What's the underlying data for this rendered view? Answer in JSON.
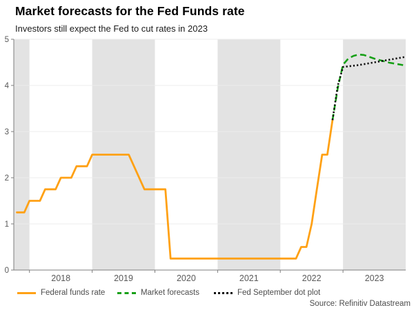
{
  "header": {
    "title": "Market forecasts for the Fed Funds rate",
    "subtitle": "Investors still expect the Fed to cut rates in 2023"
  },
  "source": "Source: Refinitiv Datastream",
  "colors": {
    "federal_funds_rate": "#FFA115",
    "market_forecasts": "#17A017",
    "dot_plot": "#0d0d0d",
    "year_band": "#e3e3e3",
    "gridline": "#ededed",
    "axis": "#7d7d7d",
    "tick_label": "#595959"
  },
  "legend": [
    {
      "label": "Federal funds rate",
      "style": "solid",
      "color": "#FFA115"
    },
    {
      "label": "Market forecasts",
      "style": "dashed",
      "color": "#17A017"
    },
    {
      "label": "Fed September dot plot",
      "style": "dotted",
      "color": "#0d0d0d"
    }
  ],
  "chart_data": {
    "type": "line",
    "title": "Market forecasts for the Fed Funds rate",
    "subtitle": "Investors still expect the Fed to cut rates in 2023",
    "x_unit": "decimal_year",
    "x_range": [
      2017.75,
      2024.0
    ],
    "ylim": [
      0,
      5
    ],
    "y_ticks": [
      0,
      1,
      2,
      3,
      4,
      5
    ],
    "x_tick_years": [
      2018,
      2019,
      2020,
      2021,
      2022,
      2023
    ],
    "grid": true,
    "legend_position": "bottom",
    "shaded_year_bands": [
      [
        2017.75,
        2018
      ],
      [
        2019,
        2020
      ],
      [
        2021,
        2022
      ],
      [
        2023,
        2024
      ]
    ],
    "series": [
      {
        "name": "Federal funds rate",
        "color": "#FFA115",
        "style": "solid",
        "points": [
          [
            2017.8,
            1.25
          ],
          [
            2017.917,
            1.25
          ],
          [
            2018.0,
            1.5
          ],
          [
            2018.167,
            1.5
          ],
          [
            2018.25,
            1.75
          ],
          [
            2018.417,
            1.75
          ],
          [
            2018.5,
            2.0
          ],
          [
            2018.667,
            2.0
          ],
          [
            2018.75,
            2.25
          ],
          [
            2018.917,
            2.25
          ],
          [
            2019.0,
            2.5
          ],
          [
            2019.583,
            2.5
          ],
          [
            2019.833,
            1.75
          ],
          [
            2020.167,
            1.75
          ],
          [
            2020.25,
            0.25
          ],
          [
            2022.25,
            0.25
          ],
          [
            2022.333,
            0.5
          ],
          [
            2022.417,
            0.5
          ],
          [
            2022.5,
            1.0
          ],
          [
            2022.583,
            1.75
          ],
          [
            2022.667,
            2.5
          ],
          [
            2022.75,
            2.5
          ],
          [
            2022.833,
            3.25
          ]
        ]
      },
      {
        "name": "Market forecasts",
        "color": "#17A017",
        "style": "dashed",
        "points": [
          [
            2022.833,
            3.25
          ],
          [
            2022.917,
            3.95
          ],
          [
            2023.0,
            4.45
          ],
          [
            2023.083,
            4.58
          ],
          [
            2023.167,
            4.64
          ],
          [
            2023.25,
            4.67
          ],
          [
            2023.333,
            4.66
          ],
          [
            2023.417,
            4.62
          ],
          [
            2023.5,
            4.58
          ],
          [
            2023.583,
            4.55
          ],
          [
            2023.667,
            4.52
          ],
          [
            2023.75,
            4.49
          ],
          [
            2023.833,
            4.47
          ],
          [
            2023.958,
            4.44
          ]
        ]
      },
      {
        "name": "Fed September dot plot",
        "color": "#0d0d0d",
        "style": "dotted",
        "points": [
          [
            2022.833,
            3.25
          ],
          [
            2022.917,
            4.0
          ],
          [
            2023.0,
            4.4
          ],
          [
            2023.25,
            4.44
          ],
          [
            2023.5,
            4.5
          ],
          [
            2023.75,
            4.56
          ],
          [
            2024.0,
            4.62
          ]
        ]
      }
    ]
  }
}
